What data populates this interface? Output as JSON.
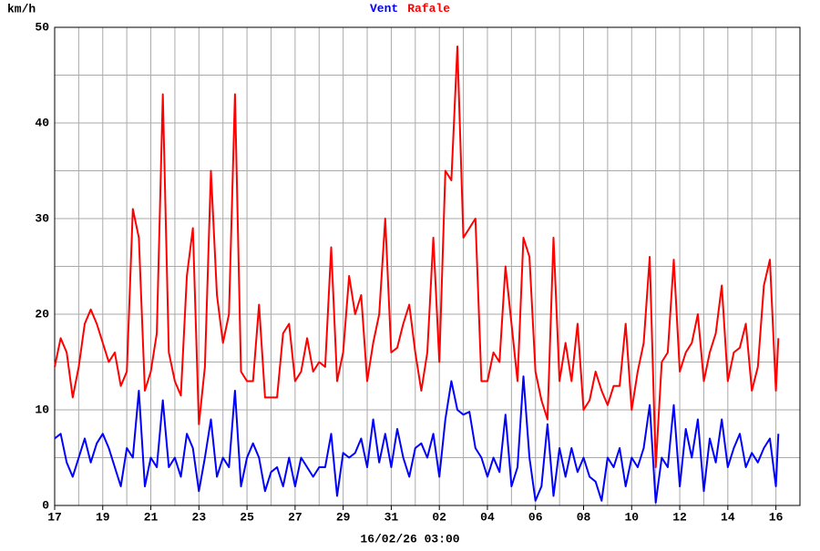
{
  "chart_data": {
    "type": "line",
    "ylabel": "km/h",
    "xlabel": "16/02/26 03:00",
    "x": [
      0,
      0.25,
      0.5,
      0.75,
      1,
      1.25,
      1.5,
      1.75,
      2,
      2.25,
      2.5,
      2.75,
      3,
      3.25,
      3.5,
      3.75,
      4,
      4.25,
      4.5,
      4.75,
      5,
      5.25,
      5.5,
      5.75,
      6,
      6.25,
      6.5,
      6.75,
      7,
      7.25,
      7.5,
      7.75,
      8,
      8.25,
      8.5,
      8.75,
      9,
      9.25,
      9.5,
      9.75,
      10,
      10.25,
      10.5,
      10.75,
      11,
      11.25,
      11.5,
      11.75,
      12,
      12.25,
      12.5,
      12.75,
      13,
      13.25,
      13.5,
      13.75,
      14,
      14.25,
      14.5,
      14.75,
      15,
      15.25,
      15.5,
      15.75,
      16,
      16.25,
      16.5,
      16.75,
      17,
      17.25,
      17.5,
      17.75,
      18,
      18.25,
      18.5,
      18.75,
      19,
      19.25,
      19.5,
      19.75,
      20,
      20.25,
      20.5,
      20.75,
      21,
      21.25,
      21.5,
      21.75,
      22,
      22.25,
      22.5,
      22.75,
      23,
      23.25,
      23.5,
      23.75,
      24,
      24.25,
      24.5,
      24.75,
      25,
      25.25,
      25.5,
      25.75,
      26,
      26.25,
      26.5,
      26.75,
      27,
      27.25,
      27.5,
      27.75,
      28,
      28.25,
      28.5,
      28.75,
      29,
      29.25,
      29.5,
      29.75,
      30,
      30.1
    ],
    "series": [
      {
        "name": "Vent",
        "color": "#0000ff",
        "values": [
          7,
          7.5,
          4.5,
          3,
          5,
          7,
          4.5,
          6.5,
          7.5,
          6,
          4,
          2,
          6,
          5,
          12,
          2,
          5,
          4,
          11,
          4,
          5,
          3,
          7.5,
          6,
          1.5,
          5,
          9,
          3,
          5,
          4,
          12,
          2,
          5,
          6.5,
          5,
          1.5,
          3.5,
          4,
          2,
          5,
          2,
          5,
          4,
          3,
          4,
          4,
          7.5,
          1,
          5.5,
          5,
          5.5,
          7,
          4,
          9,
          4.5,
          7.5,
          4,
          8,
          5,
          3,
          6,
          6.5,
          5,
          7.5,
          3,
          9,
          13,
          10,
          9.5,
          9.8,
          6,
          5,
          3,
          5,
          3.5,
          9.5,
          2,
          4,
          13.5,
          5,
          0.5,
          2,
          8.5,
          1,
          6,
          3,
          6,
          3.5,
          5,
          3,
          2.5,
          0.5,
          5,
          4,
          6,
          2,
          5,
          4,
          6,
          10.5,
          0.3,
          5,
          4,
          10.5,
          2,
          8,
          5,
          9,
          1.5,
          7,
          4.5,
          9,
          4,
          6,
          7.5,
          4,
          5.5,
          4.5,
          6,
          7,
          2,
          7.5
        ]
      },
      {
        "name": "Rafale",
        "color": "#ff0000",
        "values": [
          14.5,
          17.5,
          16,
          11.3,
          14.5,
          19,
          20.5,
          19,
          17,
          15,
          16,
          12.5,
          14,
          31,
          28,
          12,
          14,
          18,
          43,
          16,
          13,
          11.5,
          24,
          29,
          8.5,
          14.5,
          35,
          22,
          17,
          20,
          43,
          14,
          13,
          13,
          21,
          11.3,
          11.3,
          11.3,
          18,
          19,
          13,
          14,
          17.5,
          14,
          15,
          14.5,
          27,
          13,
          16,
          24,
          20,
          22,
          13,
          17,
          20,
          30,
          16,
          16.5,
          19,
          21,
          16,
          12,
          16,
          28,
          15,
          35,
          34,
          48,
          28,
          29,
          30,
          13,
          13,
          16,
          15,
          25,
          19,
          13,
          28,
          26,
          14,
          11,
          9,
          28,
          13,
          17,
          13,
          19,
          10,
          11,
          14,
          12,
          10.5,
          12.5,
          12.5,
          19,
          10,
          14,
          17,
          26,
          4,
          15,
          16,
          25.7,
          14,
          16,
          17,
          20,
          13,
          16,
          18,
          23,
          13,
          16,
          16.5,
          19,
          12,
          14.5,
          23,
          25.7,
          12,
          17.5
        ]
      }
    ],
    "xlim": [
      0,
      31
    ],
    "xticks": [
      {
        "value": 0,
        "label": "17"
      },
      {
        "value": 2,
        "label": "19"
      },
      {
        "value": 4,
        "label": "21"
      },
      {
        "value": 6,
        "label": "23"
      },
      {
        "value": 8,
        "label": "25"
      },
      {
        "value": 10,
        "label": "27"
      },
      {
        "value": 12,
        "label": "29"
      },
      {
        "value": 14,
        "label": "31"
      },
      {
        "value": 16,
        "label": "02"
      },
      {
        "value": 18,
        "label": "04"
      },
      {
        "value": 20,
        "label": "06"
      },
      {
        "value": 22,
        "label": "08"
      },
      {
        "value": 24,
        "label": "10"
      },
      {
        "value": 26,
        "label": "12"
      },
      {
        "value": 28,
        "label": "14"
      },
      {
        "value": 30,
        "label": "16"
      }
    ],
    "xminorticks": [
      1,
      3,
      5,
      7,
      9,
      11,
      13,
      15,
      17,
      19,
      21,
      23,
      25,
      27,
      29,
      31
    ],
    "ylim": [
      0,
      50
    ],
    "yticks": [
      0,
      10,
      20,
      30,
      40,
      50
    ],
    "yminorticks": [
      5,
      15,
      25,
      35,
      45
    ],
    "grid": true
  }
}
